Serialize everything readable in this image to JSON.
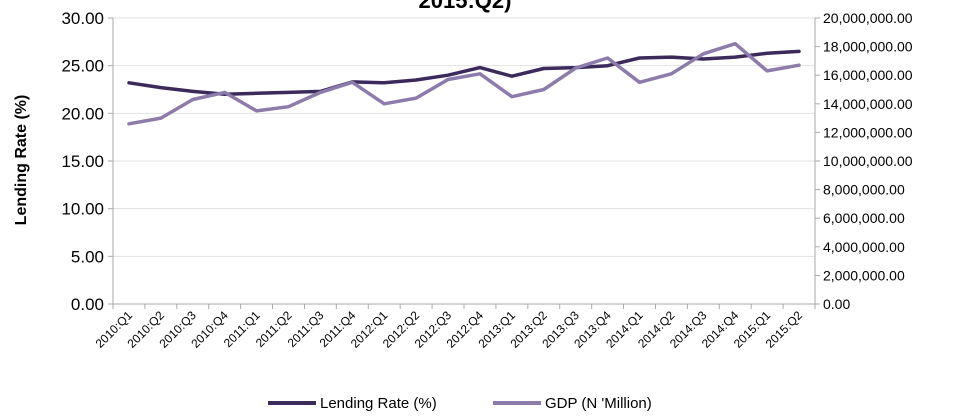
{
  "chart_data": {
    "type": "line",
    "title": "2015:Q2)",
    "ylabel": "Lending Rate (%)",
    "y2label": "",
    "ylim": [
      0,
      30
    ],
    "y2lim": [
      0,
      20000000
    ],
    "yticks": [
      "0.00",
      "5.00",
      "10.00",
      "15.00",
      "20.00",
      "25.00",
      "30.00"
    ],
    "y2ticks": [
      "0.00",
      "2,000,000.00",
      "4,000,000.00",
      "6,000,000.00",
      "8,000,000.00",
      "10,000,000.00",
      "12,000,000.00",
      "14,000,000.00",
      "16,000,000.00",
      "18,000,000.00",
      "20,000,000.00"
    ],
    "categories": [
      "2010:Q1",
      "2010:Q2",
      "2010:Q3",
      "2010:Q4",
      "2011:Q1",
      "2011:Q2",
      "2011:Q3",
      "2011:Q4",
      "2012:Q1",
      "2012:Q2",
      "2012:Q3",
      "2012:Q4",
      "2013:Q1",
      "2013:Q2",
      "2013:Q3",
      "2013:Q4",
      "2014:Q1",
      "2014:Q2",
      "2014:Q3",
      "2014:Q4",
      "2015:Q1",
      "2015:Q2"
    ],
    "grid": true,
    "legend_position": "bottom",
    "series": [
      {
        "name": "Lending Rate (%)",
        "axis": "left",
        "color": "#3d2a5c",
        "values": [
          23.2,
          22.7,
          22.3,
          22.0,
          22.1,
          22.2,
          22.3,
          23.3,
          23.2,
          23.5,
          24.0,
          24.8,
          23.9,
          24.7,
          24.8,
          25.0,
          25.8,
          25.9,
          25.7,
          25.9,
          26.3,
          26.5
        ]
      },
      {
        "name": "GDP (N 'Million)",
        "axis": "right",
        "color": "#8c7bab",
        "values": [
          12600000,
          13000000,
          14300000,
          14800000,
          13500000,
          13800000,
          14800000,
          15500000,
          14000000,
          14400000,
          15700000,
          16100000,
          14500000,
          15000000,
          16500000,
          17200000,
          15500000,
          16100000,
          17500000,
          18200000,
          16300000,
          16700000
        ]
      }
    ]
  }
}
